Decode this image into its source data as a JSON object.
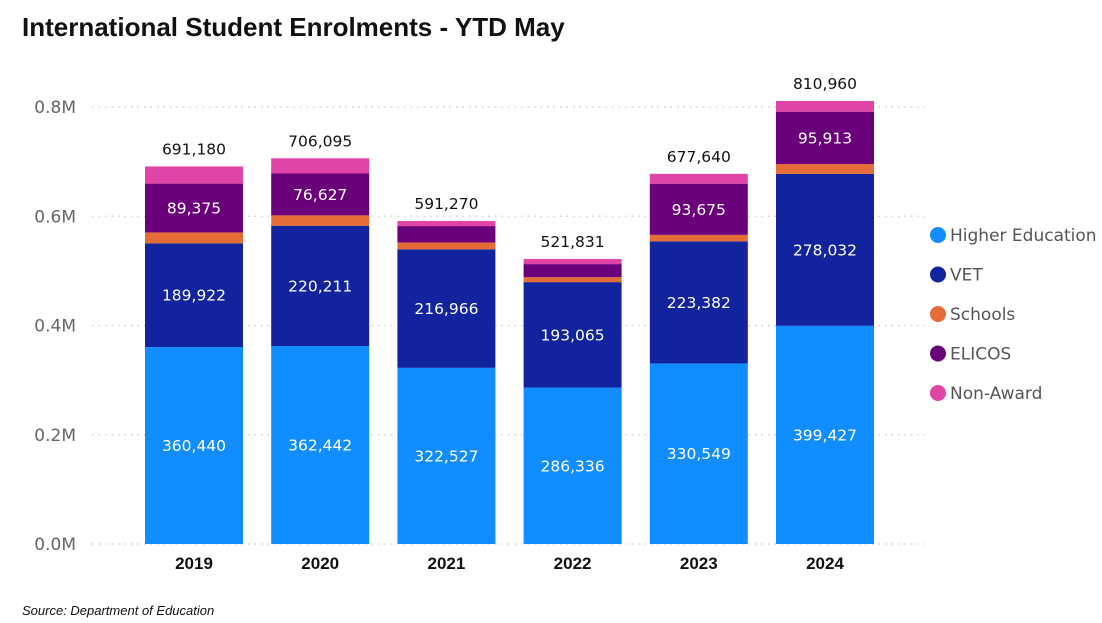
{
  "chart_data": {
    "type": "bar",
    "stacked": true,
    "title": "International Student Enrolments - YTD May",
    "categories": [
      "2019",
      "2020",
      "2021",
      "2022",
      "2023",
      "2024"
    ],
    "series": [
      {
        "name": "Higher Education",
        "color": "#118DFF",
        "values": [
          360440,
          362442,
          322527,
          286336,
          330549,
          399427
        ]
      },
      {
        "name": "VET",
        "color": "#12239E",
        "values": [
          189922,
          220211,
          216966,
          193065,
          223382,
          278032
        ]
      },
      {
        "name": "Schools",
        "color": "#E66C37",
        "values": [
          20000,
          19000,
          12500,
          9000,
          12000,
          18000
        ]
      },
      {
        "name": "ELICOS",
        "color": "#6B007B",
        "values": [
          89375,
          76627,
          30000,
          24000,
          93675,
          95913
        ]
      },
      {
        "name": "Non-Award",
        "color": "#E044A7",
        "values": [
          31443,
          27815,
          9277,
          9430,
          18034,
          19588
        ]
      }
    ],
    "segment_labels": [
      [
        "360,440",
        "362,442",
        "322,527",
        "286,336",
        "330,549",
        "399,427"
      ],
      [
        "189,922",
        "220,211",
        "216,966",
        "193,065",
        "223,382",
        "278,032"
      ],
      [
        null,
        null,
        null,
        null,
        null,
        null
      ],
      [
        "89,375",
        "76,627",
        null,
        null,
        "93,675",
        "95,913"
      ],
      [
        null,
        null,
        null,
        null,
        null,
        null
      ]
    ],
    "totals": [
      "691,180",
      "706,095",
      "591,270",
      "521,831",
      "677,640",
      "810,960"
    ],
    "y_ticks": [
      {
        "value": 0,
        "label": "0.0M"
      },
      {
        "value": 200000,
        "label": "0.2M"
      },
      {
        "value": 400000,
        "label": "0.4M"
      },
      {
        "value": 600000,
        "label": "0.6M"
      },
      {
        "value": 800000,
        "label": "0.8M"
      }
    ],
    "ylim": [
      0,
      800000
    ],
    "xlabel": "",
    "ylabel": "",
    "grid": true,
    "legend": "right"
  },
  "footer": {
    "source": "Source: Department of Education"
  }
}
